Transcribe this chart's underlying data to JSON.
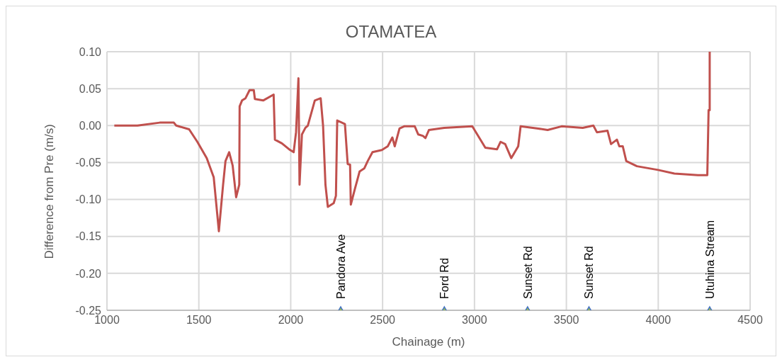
{
  "chart_data": {
    "type": "line",
    "title": "OTAMATEA",
    "xlabel": "Chainage (m)",
    "ylabel": "Difference from Pre  (m/s)",
    "xlim": [
      1000,
      4500
    ],
    "xticks": [
      1000,
      1500,
      2000,
      2500,
      3000,
      3500,
      4000,
      4500
    ],
    "ylim": [
      -0.25,
      0.1
    ],
    "yticks": [
      {
        "value": -0.25,
        "label": "-0.25"
      },
      {
        "value": -0.2,
        "label": "-0.20"
      },
      {
        "value": -0.15,
        "label": "-0.15"
      },
      {
        "value": -0.1,
        "label": "-0.10"
      },
      {
        "value": -0.05,
        "label": "-0.05"
      },
      {
        "value": 0,
        "label": "0.00"
      },
      {
        "value": 0.05,
        "label": "0.05"
      },
      {
        "value": 0.1,
        "label": "0.10"
      }
    ],
    "grid": true,
    "marker": "none",
    "line_style": "solid",
    "series": [
      {
        "color": "#c0504d",
        "x": [
          1040,
          1166,
          1287,
          1364,
          1377,
          1447,
          1492,
          1543,
          1581,
          1609,
          1632,
          1645,
          1665,
          1684,
          1703,
          1720,
          1722,
          1735,
          1754,
          1776,
          1799,
          1805,
          1850,
          1907,
          1914,
          1952,
          1991,
          2016,
          2029,
          2042,
          2048,
          2061,
          2080,
          2093,
          2131,
          2163,
          2176,
          2189,
          2202,
          2234,
          2246,
          2253,
          2295,
          2310,
          2323,
          2327,
          2349,
          2375,
          2400,
          2419,
          2445,
          2496,
          2528,
          2553,
          2566,
          2592,
          2617,
          2675,
          2694,
          2720,
          2733,
          2752,
          2835,
          2988,
          3008,
          3059,
          3123,
          3142,
          3167,
          3200,
          3238,
          3251,
          3347,
          3398,
          3474,
          3589,
          3647,
          3666,
          3724,
          3743,
          3775,
          3788,
          3807,
          3826,
          3884,
          3999,
          4088,
          4216,
          4267,
          4274,
          4280,
          4280
        ],
        "values": [
          0,
          0,
          0.004,
          0.004,
          0,
          -0.005,
          -0.022,
          -0.044,
          -0.07,
          -0.143,
          -0.08,
          -0.048,
          -0.036,
          -0.054,
          -0.097,
          -0.08,
          0.026,
          0.034,
          0.037,
          0.048,
          0.048,
          0.036,
          0.034,
          0.042,
          -0.019,
          -0.024,
          -0.032,
          -0.036,
          -0.009,
          0.064,
          -0.08,
          -0.012,
          -0.003,
          0,
          0.034,
          0.037,
          0,
          -0.08,
          -0.11,
          -0.105,
          -0.095,
          0.007,
          0.002,
          -0.052,
          -0.053,
          -0.107,
          -0.086,
          -0.062,
          -0.058,
          -0.048,
          -0.036,
          -0.033,
          -0.028,
          -0.016,
          -0.028,
          -0.004,
          -0.001,
          -0.001,
          -0.012,
          -0.014,
          -0.017,
          -0.006,
          -0.003,
          -0.001,
          -0.009,
          -0.03,
          -0.032,
          -0.022,
          -0.025,
          -0.044,
          -0.028,
          -0.001,
          -0.004,
          -0.006,
          -0.001,
          -0.003,
          0,
          -0.009,
          -0.007,
          -0.025,
          -0.019,
          -0.028,
          -0.028,
          -0.048,
          -0.055,
          -0.06,
          -0.065,
          -0.067,
          -0.067,
          0.021,
          0.021,
          0.1
        ]
      },
      {
        "type": "scatter",
        "color": "#4472c4",
        "marker": "triangle",
        "x": [
          2272,
          2836,
          3289,
          3623,
          4280
        ],
        "values": [
          -0.25,
          -0.25,
          -0.25,
          -0.25,
          -0.25
        ]
      }
    ],
    "annotations": [
      {
        "text": "Pandora Ave",
        "x": 2272,
        "y": -0.25
      },
      {
        "text": "Ford Rd",
        "x": 2836,
        "y": -0.25
      },
      {
        "text": "Sunset Rd",
        "x": 3289,
        "y": -0.25
      },
      {
        "text": "Sunset Rd",
        "x": 3623,
        "y": -0.25
      },
      {
        "text": "Utuhina Stream",
        "x": 4280,
        "y": -0.25
      }
    ]
  }
}
